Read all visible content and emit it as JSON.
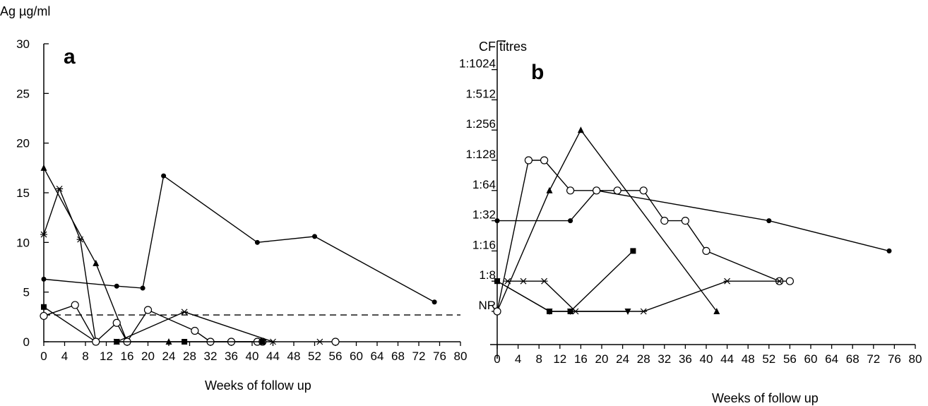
{
  "chart_data": [
    {
      "type": "line",
      "panel_label": "a",
      "ylabel": "Ag µg/ml",
      "xlabel": "Weeks of follow  up",
      "xlim": [
        0,
        80
      ],
      "ylim": [
        0,
        30
      ],
      "x_ticks": [
        0,
        4,
        8,
        12,
        16,
        20,
        24,
        28,
        32,
        36,
        40,
        44,
        48,
        52,
        56,
        60,
        64,
        68,
        72,
        76,
        80
      ],
      "y_ticks": [
        0,
        5,
        10,
        15,
        20,
        25,
        30
      ],
      "threshold": 2.7,
      "series": [
        {
          "marker": "circle-filled",
          "points": [
            [
              0,
              6.3
            ],
            [
              14,
              5.6
            ],
            [
              19,
              5.4
            ],
            [
              23,
              16.7
            ],
            [
              41,
              10
            ],
            [
              52,
              10.6
            ],
            [
              75,
              4
            ]
          ]
        },
        {
          "marker": "triangle-filled",
          "points": [
            [
              0,
              17.5
            ],
            [
              10,
              7.9
            ],
            [
              16,
              0
            ]
          ]
        },
        {
          "marker": "star",
          "points": [
            [
              0,
              10.8
            ],
            [
              3,
              15.4
            ],
            [
              7,
              10.3
            ],
            [
              10,
              0
            ]
          ]
        },
        {
          "marker": "square-filled",
          "points": [
            [
              0,
              3.5
            ],
            [
              10,
              0
            ]
          ]
        },
        {
          "marker": "circle-open",
          "points": [
            [
              0,
              2.6
            ],
            [
              6,
              3.7
            ],
            [
              10,
              0
            ],
            [
              14,
              1.9
            ],
            [
              16,
              0
            ],
            [
              20,
              3.2
            ],
            [
              29,
              1.1
            ],
            [
              32,
              0
            ],
            [
              36,
              0
            ],
            [
              41,
              0
            ],
            [
              42,
              0
            ]
          ]
        },
        {
          "marker": "star",
          "points": [
            [
              14,
              0
            ],
            [
              27,
              3.0
            ],
            [
              44,
              0
            ]
          ]
        },
        {
          "marker": "triangle-filled",
          "points": [
            [
              24,
              0
            ]
          ]
        },
        {
          "marker": "square-filled",
          "points": [
            [
              14,
              0
            ],
            [
              27,
              0
            ],
            [
              42,
              0
            ]
          ]
        },
        {
          "marker": "star",
          "points": [
            [
              53,
              0
            ]
          ]
        },
        {
          "marker": "circle-open",
          "points": [
            [
              56,
              0
            ]
          ]
        }
      ]
    },
    {
      "type": "line",
      "panel_label": "b",
      "ylabel": "CF titres",
      "xlabel": "Weeks of follow  up",
      "xlim": [
        0,
        80
      ],
      "x_ticks": [
        0,
        4,
        8,
        12,
        16,
        20,
        24,
        28,
        32,
        36,
        40,
        44,
        48,
        52,
        56,
        60,
        64,
        68,
        72,
        76,
        80
      ],
      "y_categories": [
        "NR",
        "1:8",
        "1:16",
        "1:32",
        "1:64",
        "1:128",
        "1:256",
        "1:512",
        "1:1024"
      ],
      "series": [
        {
          "marker": "circle-filled",
          "points": [
            [
              0,
              "1:32"
            ],
            [
              14,
              "1:32"
            ],
            [
              19,
              "1:64"
            ],
            [
              52,
              "1:32"
            ],
            [
              75,
              "1:16"
            ]
          ]
        },
        {
          "marker": "triangle-filled",
          "points": [
            [
              0,
              "NR"
            ],
            [
              10,
              "1:64"
            ],
            [
              16,
              "1:256"
            ],
            [
              42,
              "NR"
            ]
          ]
        },
        {
          "marker": "circle-open",
          "points": [
            [
              0,
              "NR"
            ],
            [
              6,
              "1:128"
            ],
            [
              9,
              "1:128"
            ],
            [
              14,
              "1:64"
            ],
            [
              19,
              "1:64"
            ],
            [
              23,
              "1:64"
            ],
            [
              28,
              "1:64"
            ],
            [
              32,
              "1:32"
            ],
            [
              36,
              "1:32"
            ],
            [
              40,
              "1:16"
            ],
            [
              54,
              "1:8"
            ],
            [
              56,
              "1:8"
            ]
          ]
        },
        {
          "marker": "square-filled",
          "points": [
            [
              0,
              "1:8"
            ],
            [
              10,
              "NR"
            ],
            [
              14,
              "NR"
            ],
            [
              26,
              "1:16"
            ]
          ]
        },
        {
          "marker": "star",
          "points": [
            [
              2,
              "1:8"
            ],
            [
              5,
              "1:8"
            ],
            [
              9,
              "1:8"
            ],
            [
              15,
              "NR"
            ],
            [
              28,
              "NR"
            ],
            [
              44,
              "1:8"
            ],
            [
              54,
              "1:8"
            ]
          ]
        },
        {
          "marker": "triangle-down-filled",
          "points": [
            [
              0,
              "1:8"
            ],
            [
              10,
              "NR"
            ],
            [
              14,
              "NR"
            ],
            [
              25,
              "NR"
            ]
          ]
        }
      ]
    }
  ]
}
